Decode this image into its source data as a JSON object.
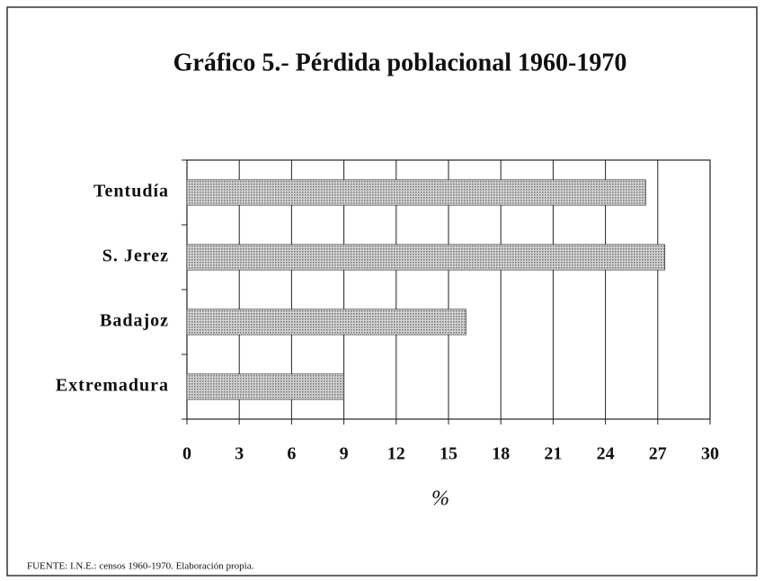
{
  "chart_data": {
    "type": "barh",
    "title": "Gráfico 5.- Pérdida poblacional 1960-1970",
    "categories": [
      "Tentudía",
      "S. Jerez",
      "Badajoz",
      "Extremadura"
    ],
    "values": [
      26.3,
      27.4,
      16,
      9
    ],
    "color": "#b4b4b4",
    "xlim": [
      0,
      30
    ],
    "xticks": [
      0,
      3,
      6,
      9,
      12,
      15,
      18,
      21,
      24,
      27,
      30
    ],
    "grid": true,
    "xlabel": "%",
    "source": "FUENTE: I.N.E.: censos 1960-1970. Elaboración propia."
  }
}
